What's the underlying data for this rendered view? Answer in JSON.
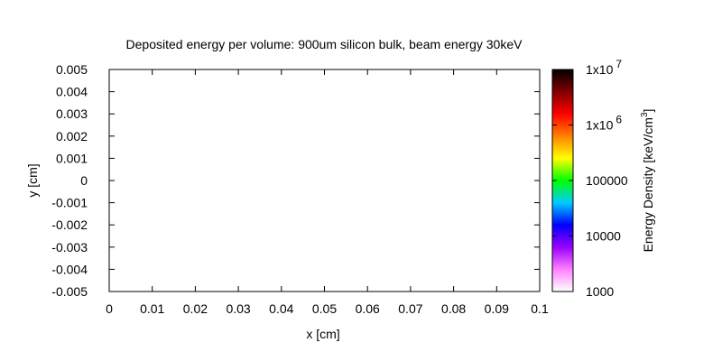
{
  "chart_data": {
    "type": "heatmap",
    "title": "Deposited energy per volume: 900um silicon bulk, beam energy 30keV",
    "xlabel": "x [cm]",
    "ylabel": "y [cm]",
    "xlim": [
      0,
      0.1
    ],
    "ylim": [
      -0.005,
      0.005
    ],
    "x_ticks": [
      "0",
      "0.01",
      "0.02",
      "0.03",
      "0.04",
      "0.05",
      "0.06",
      "0.07",
      "0.08",
      "0.09",
      "0.1"
    ],
    "y_ticks": [
      "0.005",
      "0.004",
      "0.003",
      "0.002",
      "0.001",
      "0",
      "-0.001",
      "-0.002",
      "-0.003",
      "-0.004",
      "-0.005"
    ],
    "grid": false,
    "values": [],
    "colorbar": {
      "label_main": "Energy Density [keV/cm",
      "label_sup": "3",
      "label_end": "]",
      "scale": "log",
      "range": [
        1000,
        10000000
      ],
      "ticks": [
        {
          "value": 10000000,
          "base": "1x10",
          "exp": "7"
        },
        {
          "value": 1000000,
          "base": "1x10",
          "exp": "6"
        },
        {
          "value": 100000,
          "base": "100000",
          "exp": ""
        },
        {
          "value": 10000,
          "base": "10000",
          "exp": ""
        },
        {
          "value": 1000,
          "base": "1000",
          "exp": ""
        }
      ],
      "colors": [
        "#ffffff",
        "#ff80ff",
        "#9900ff",
        "#0000ff",
        "#00ccff",
        "#00ff00",
        "#ffff00",
        "#ff8000",
        "#ff0000",
        "#800000",
        "#000000"
      ]
    }
  }
}
